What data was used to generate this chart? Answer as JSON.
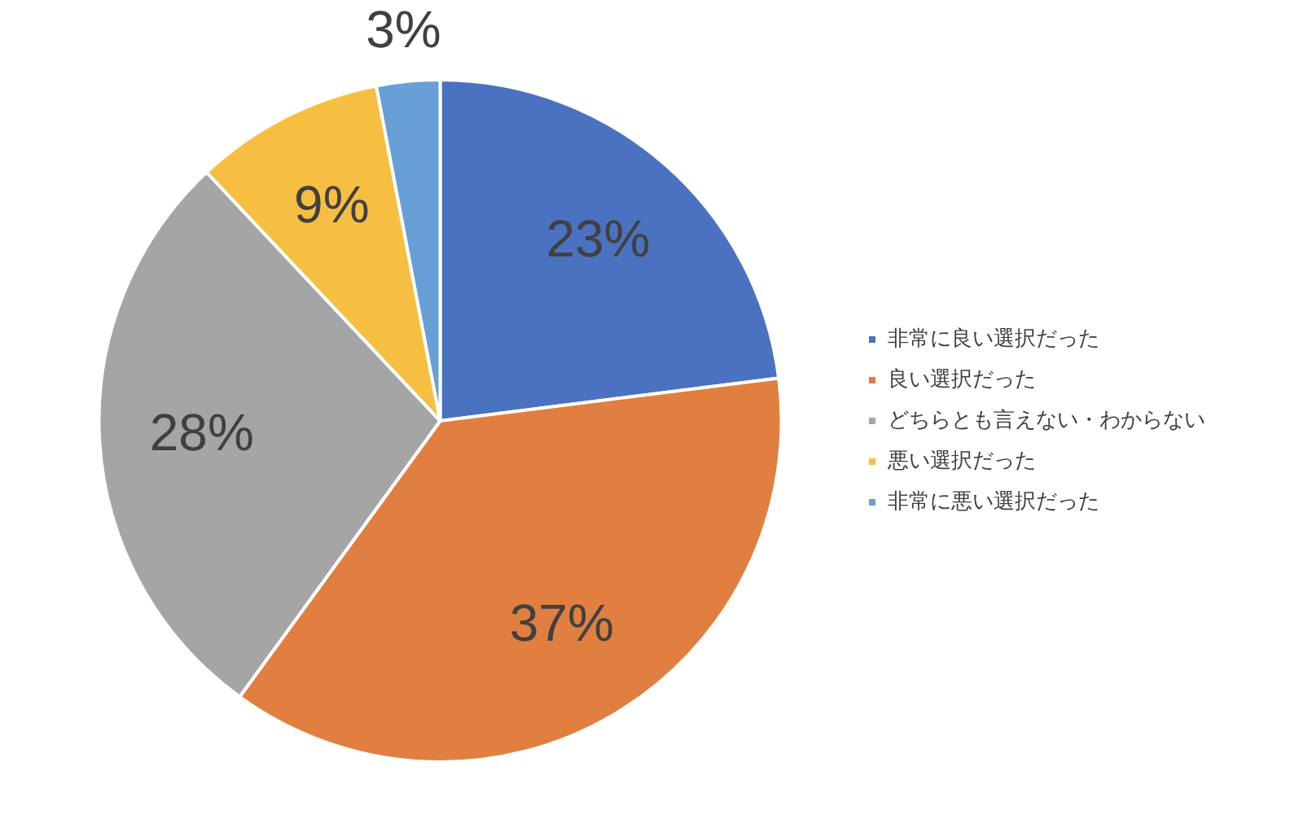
{
  "chart_data": {
    "type": "pie",
    "categories": [
      "非常に良い選択だった",
      "良い選択だった",
      "どちらとも言えない・わからない",
      "悪い選択だった",
      "非常に悪い選択だった"
    ],
    "values": [
      23,
      37,
      28,
      9,
      3
    ],
    "colors": [
      "#4a72c0",
      "#e07f40",
      "#a5a5a5",
      "#f7bf41",
      "#689fd6"
    ],
    "value_labels": [
      "23%",
      "37%",
      "28%",
      "9%",
      "3%"
    ],
    "legend": "right"
  }
}
